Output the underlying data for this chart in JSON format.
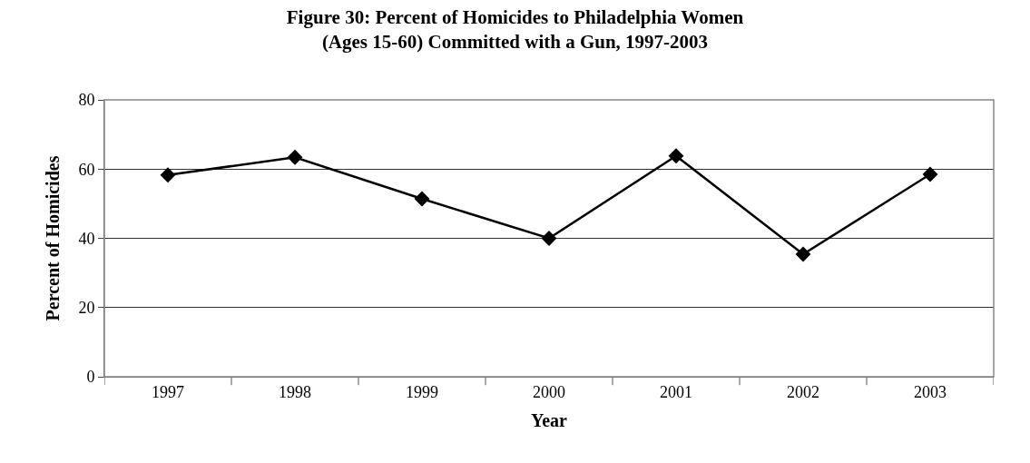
{
  "chart_data": {
    "type": "line",
    "title": "Figure 30: Percent of Homicides to Philadelphia Women\n(Ages 15-60) Committed with a Gun, 1997-2003",
    "xlabel": "Year",
    "ylabel": "Percent of Homicides",
    "categories": [
      "1997",
      "1998",
      "1999",
      "2000",
      "2001",
      "2002",
      "2003"
    ],
    "series": [
      {
        "color": "#000000",
        "values": [
          58.3,
          63.4,
          51.4,
          40,
          63.8,
          35.4,
          58.5
        ]
      }
    ],
    "ylim": [
      0,
      80
    ],
    "yticks": [
      0,
      20,
      40,
      60,
      80
    ],
    "grid": "y",
    "legend": false,
    "marker": "diamond",
    "line_style": "solid"
  }
}
